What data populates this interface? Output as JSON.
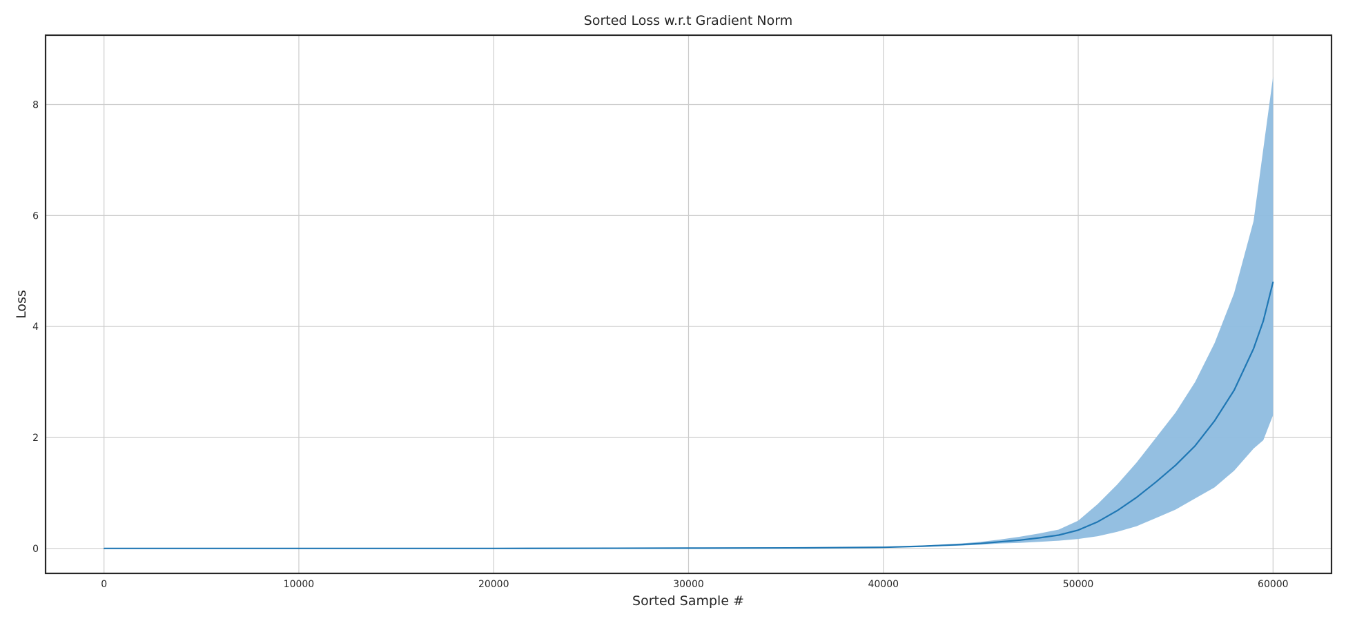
{
  "chart_data": {
    "type": "line",
    "title": "Sorted Loss w.r.t Gradient Norm",
    "xlabel": "Sorted Sample #",
    "ylabel": "Loss",
    "xlim": [
      -3000,
      63000
    ],
    "ylim": [
      -0.45,
      9.25
    ],
    "xticks": [
      0,
      10000,
      20000,
      30000,
      40000,
      50000,
      60000
    ],
    "yticks": [
      0,
      2,
      4,
      6,
      8
    ],
    "grid": true,
    "legend": "none",
    "colors": {
      "line": "#1f77b4",
      "band": "#8ebcdf",
      "grid": "#cccccc",
      "frame": "#262626"
    },
    "series": [
      {
        "x": [
          0,
          10000,
          20000,
          30000,
          36000,
          40000,
          42000,
          44000,
          45000,
          46000,
          47000,
          48000,
          49000,
          50000,
          51000,
          52000,
          53000,
          54000,
          55000,
          56000,
          57000,
          58000,
          59000,
          59500,
          60000
        ],
        "y": [
          0,
          0,
          0,
          0.005,
          0.01,
          0.02,
          0.04,
          0.07,
          0.09,
          0.12,
          0.15,
          0.19,
          0.24,
          0.33,
          0.48,
          0.68,
          0.92,
          1.2,
          1.5,
          1.85,
          2.3,
          2.85,
          3.6,
          4.1,
          4.8
        ],
        "lower": [
          0,
          0,
          0,
          0.005,
          0.01,
          0.015,
          0.03,
          0.05,
          0.07,
          0.09,
          0.1,
          0.12,
          0.14,
          0.17,
          0.22,
          0.3,
          0.4,
          0.55,
          0.7,
          0.9,
          1.1,
          1.4,
          1.8,
          1.95,
          2.4
        ],
        "upper": [
          0,
          0,
          0,
          0.005,
          0.012,
          0.03,
          0.05,
          0.09,
          0.12,
          0.16,
          0.21,
          0.27,
          0.34,
          0.5,
          0.8,
          1.15,
          1.55,
          2.0,
          2.45,
          3.0,
          3.7,
          4.6,
          5.9,
          7.2,
          8.5
        ]
      }
    ]
  }
}
